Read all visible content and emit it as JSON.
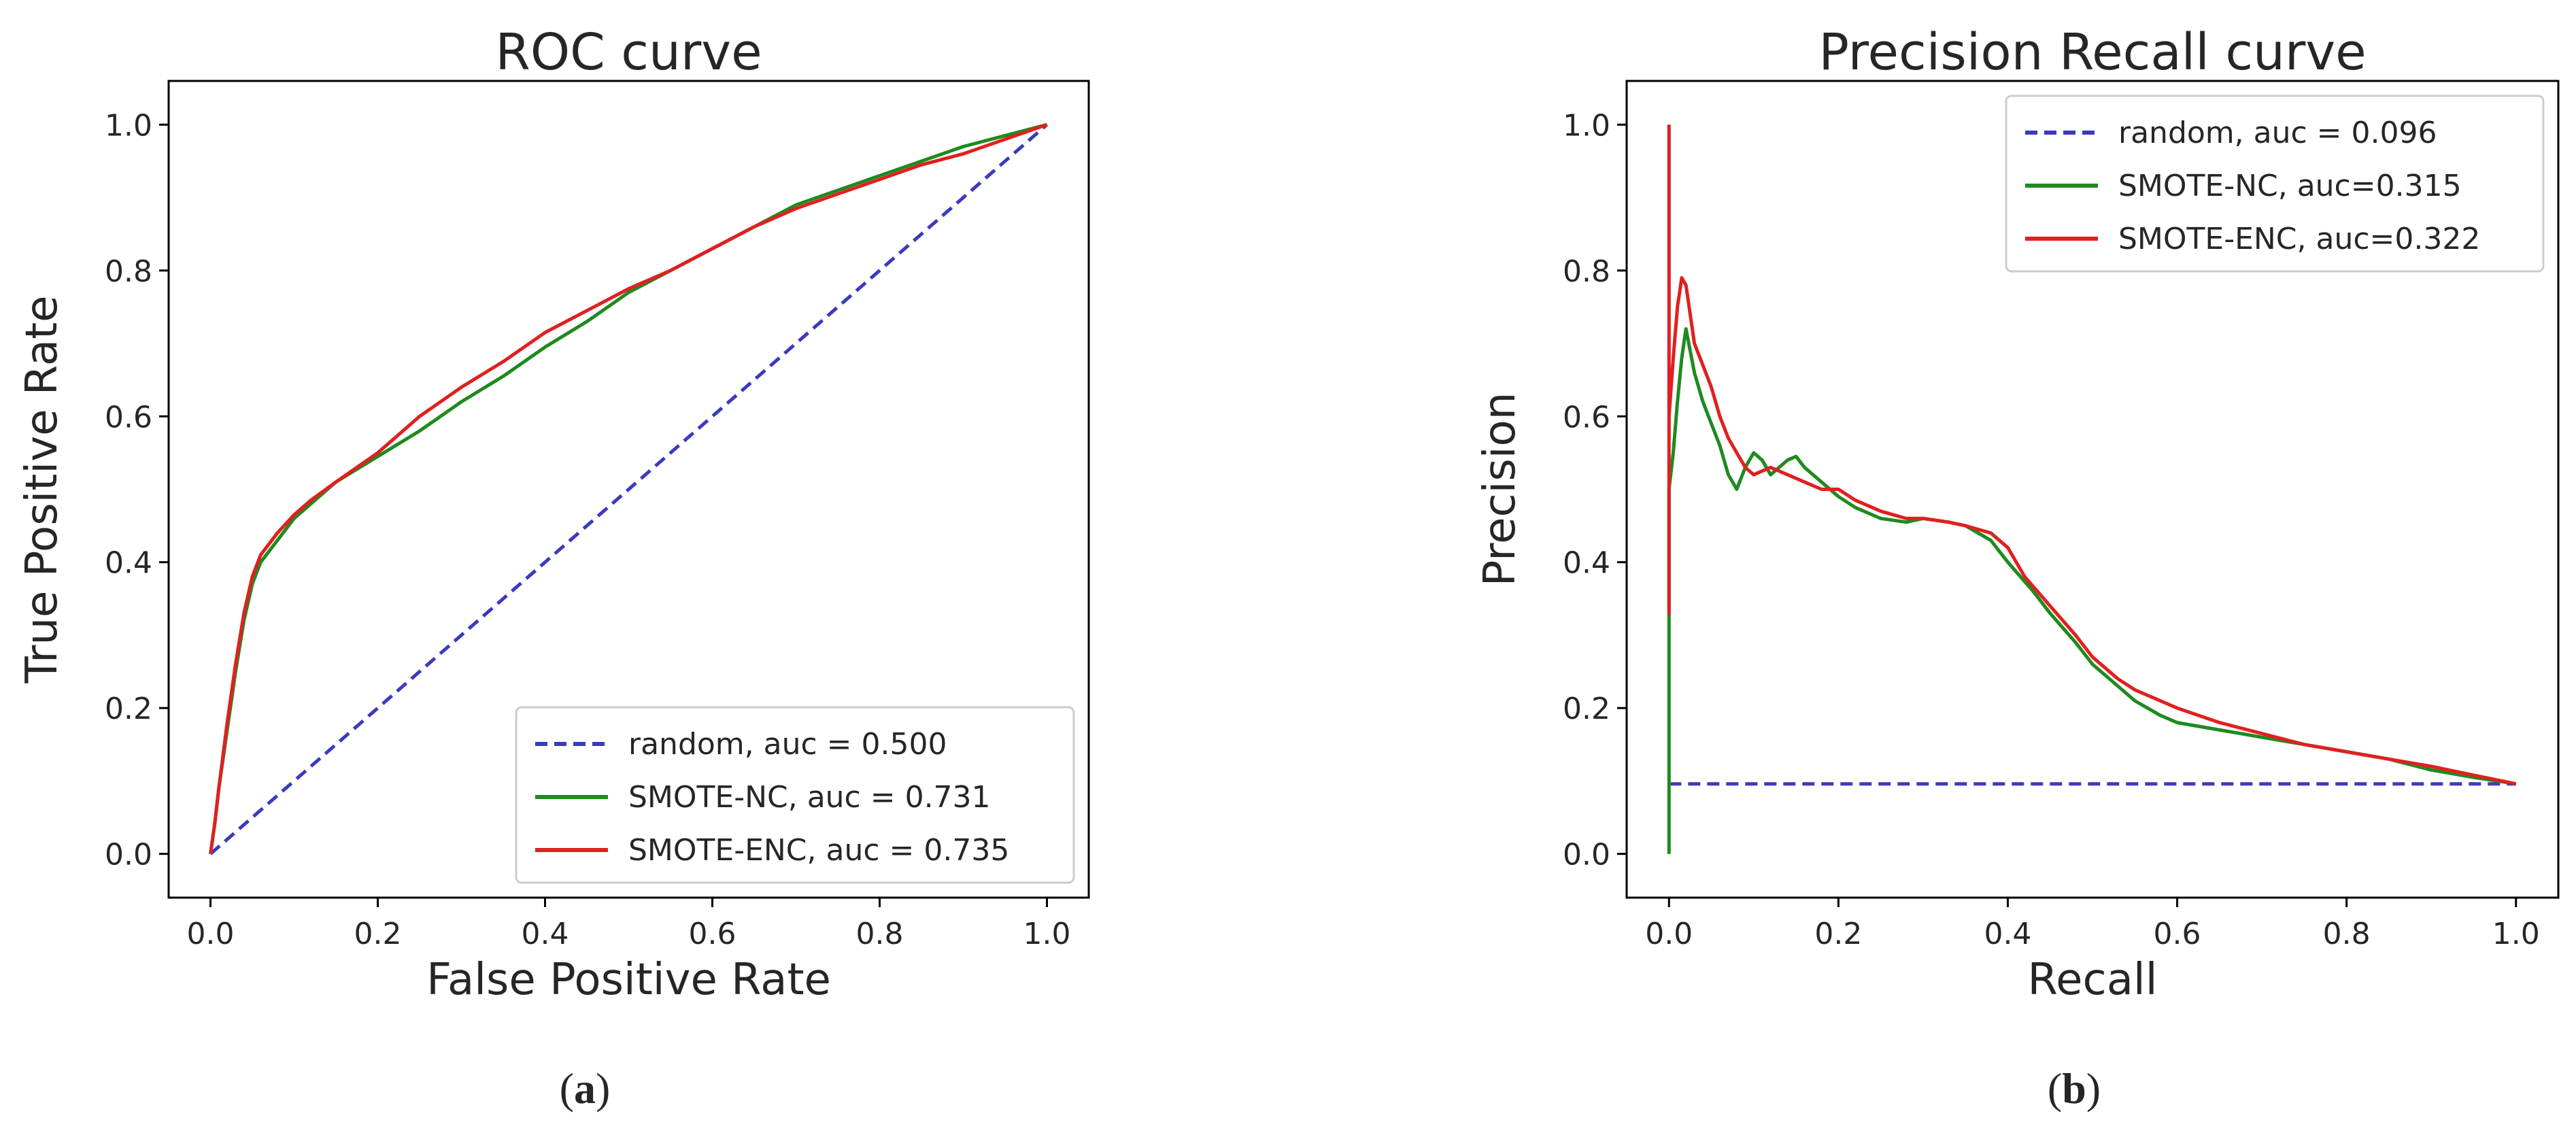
{
  "chart_data": [
    {
      "type": "line",
      "panel_label": "a",
      "title": "ROC curve",
      "xlabel": "False Positive Rate",
      "ylabel": "True Positive Rate",
      "xlim": [
        -0.05,
        1.05
      ],
      "ylim": [
        -0.06,
        1.06
      ],
      "xticks": [
        0.0,
        0.2,
        0.4,
        0.6,
        0.8,
        1.0
      ],
      "yticks": [
        0.0,
        0.2,
        0.4,
        0.6,
        0.8,
        1.0
      ],
      "tick_labels": [
        "0.0",
        "0.2",
        "0.4",
        "0.6",
        "0.8",
        "1.0"
      ],
      "legend_position": "bottom-right",
      "series": [
        {
          "name": "random, auc = 0.500",
          "color": "#3a3abf",
          "dash": true,
          "x": [
            0.0,
            1.0
          ],
          "y": [
            0.0,
            1.0
          ]
        },
        {
          "name": "SMOTE-NC, auc = 0.731",
          "color": "#1f8a1f",
          "dash": false,
          "x": [
            0.0,
            0.005,
            0.01,
            0.02,
            0.03,
            0.04,
            0.05,
            0.06,
            0.08,
            0.1,
            0.12,
            0.15,
            0.2,
            0.25,
            0.3,
            0.35,
            0.4,
            0.45,
            0.5,
            0.55,
            0.6,
            0.65,
            0.7,
            0.75,
            0.8,
            0.85,
            0.9,
            0.95,
            1.0
          ],
          "y": [
            0.0,
            0.04,
            0.09,
            0.17,
            0.25,
            0.32,
            0.37,
            0.4,
            0.43,
            0.46,
            0.48,
            0.51,
            0.545,
            0.58,
            0.62,
            0.655,
            0.695,
            0.73,
            0.77,
            0.8,
            0.83,
            0.86,
            0.89,
            0.91,
            0.93,
            0.95,
            0.97,
            0.985,
            1.0
          ]
        },
        {
          "name": "SMOTE-ENC, auc = 0.735",
          "color": "#e02020",
          "dash": false,
          "x": [
            0.0,
            0.005,
            0.01,
            0.02,
            0.03,
            0.04,
            0.05,
            0.06,
            0.08,
            0.1,
            0.12,
            0.15,
            0.2,
            0.25,
            0.3,
            0.35,
            0.4,
            0.45,
            0.5,
            0.55,
            0.6,
            0.65,
            0.7,
            0.75,
            0.8,
            0.85,
            0.9,
            0.95,
            1.0
          ],
          "y": [
            0.0,
            0.04,
            0.09,
            0.18,
            0.26,
            0.33,
            0.38,
            0.41,
            0.44,
            0.465,
            0.485,
            0.51,
            0.55,
            0.6,
            0.64,
            0.675,
            0.715,
            0.745,
            0.775,
            0.8,
            0.83,
            0.86,
            0.885,
            0.905,
            0.925,
            0.945,
            0.96,
            0.98,
            1.0
          ]
        }
      ]
    },
    {
      "type": "line",
      "panel_label": "b",
      "title": "Precision Recall curve",
      "xlabel": "Recall",
      "ylabel": "Precision",
      "xlim": [
        -0.05,
        1.05
      ],
      "ylim": [
        -0.06,
        1.06
      ],
      "xticks": [
        0.0,
        0.2,
        0.4,
        0.6,
        0.8,
        1.0
      ],
      "yticks": [
        0.0,
        0.2,
        0.4,
        0.6,
        0.8,
        1.0
      ],
      "tick_labels": [
        "0.0",
        "0.2",
        "0.4",
        "0.6",
        "0.8",
        "1.0"
      ],
      "legend_position": "top-right",
      "series": [
        {
          "name": "random, auc = 0.096",
          "color": "#3a3abf",
          "dash": true,
          "x": [
            0.0,
            1.0
          ],
          "y": [
            0.096,
            0.096
          ]
        },
        {
          "name": "SMOTE-NC, auc=0.315",
          "color": "#1f8a1f",
          "dash": false,
          "x": [
            0.0,
            0.0,
            0.0,
            0.005,
            0.01,
            0.015,
            0.02,
            0.03,
            0.04,
            0.05,
            0.06,
            0.07,
            0.08,
            0.09,
            0.1,
            0.11,
            0.12,
            0.13,
            0.14,
            0.15,
            0.16,
            0.18,
            0.2,
            0.22,
            0.25,
            0.28,
            0.3,
            0.33,
            0.35,
            0.38,
            0.4,
            0.43,
            0.45,
            0.48,
            0.5,
            0.53,
            0.55,
            0.58,
            0.6,
            0.65,
            0.7,
            0.75,
            0.8,
            0.85,
            0.9,
            0.95,
            1.0
          ],
          "y": [
            0.0,
            0.33,
            0.5,
            0.55,
            0.62,
            0.68,
            0.72,
            0.66,
            0.62,
            0.59,
            0.56,
            0.52,
            0.5,
            0.53,
            0.55,
            0.54,
            0.52,
            0.53,
            0.54,
            0.545,
            0.53,
            0.51,
            0.49,
            0.475,
            0.46,
            0.455,
            0.46,
            0.455,
            0.45,
            0.43,
            0.4,
            0.36,
            0.33,
            0.29,
            0.26,
            0.23,
            0.21,
            0.19,
            0.18,
            0.17,
            0.16,
            0.15,
            0.14,
            0.13,
            0.115,
            0.105,
            0.096
          ]
        },
        {
          "name": "SMOTE-ENC, auc=0.322",
          "color": "#e02020",
          "dash": false,
          "x": [
            0.0,
            0.0,
            0.0,
            0.005,
            0.01,
            0.015,
            0.02,
            0.025,
            0.03,
            0.04,
            0.05,
            0.06,
            0.07,
            0.08,
            0.09,
            0.1,
            0.12,
            0.14,
            0.16,
            0.18,
            0.2,
            0.22,
            0.25,
            0.28,
            0.3,
            0.33,
            0.35,
            0.38,
            0.4,
            0.42,
            0.45,
            0.48,
            0.5,
            0.53,
            0.55,
            0.58,
            0.6,
            0.65,
            0.7,
            0.75,
            0.8,
            0.85,
            0.9,
            0.95,
            1.0
          ],
          "y": [
            1.0,
            0.33,
            0.6,
            0.68,
            0.75,
            0.79,
            0.78,
            0.74,
            0.7,
            0.67,
            0.64,
            0.6,
            0.57,
            0.55,
            0.53,
            0.52,
            0.53,
            0.52,
            0.51,
            0.5,
            0.5,
            0.485,
            0.47,
            0.46,
            0.46,
            0.455,
            0.45,
            0.44,
            0.42,
            0.38,
            0.34,
            0.3,
            0.27,
            0.24,
            0.225,
            0.21,
            0.2,
            0.18,
            0.165,
            0.15,
            0.14,
            0.13,
            0.12,
            0.108,
            0.096
          ]
        }
      ]
    }
  ]
}
